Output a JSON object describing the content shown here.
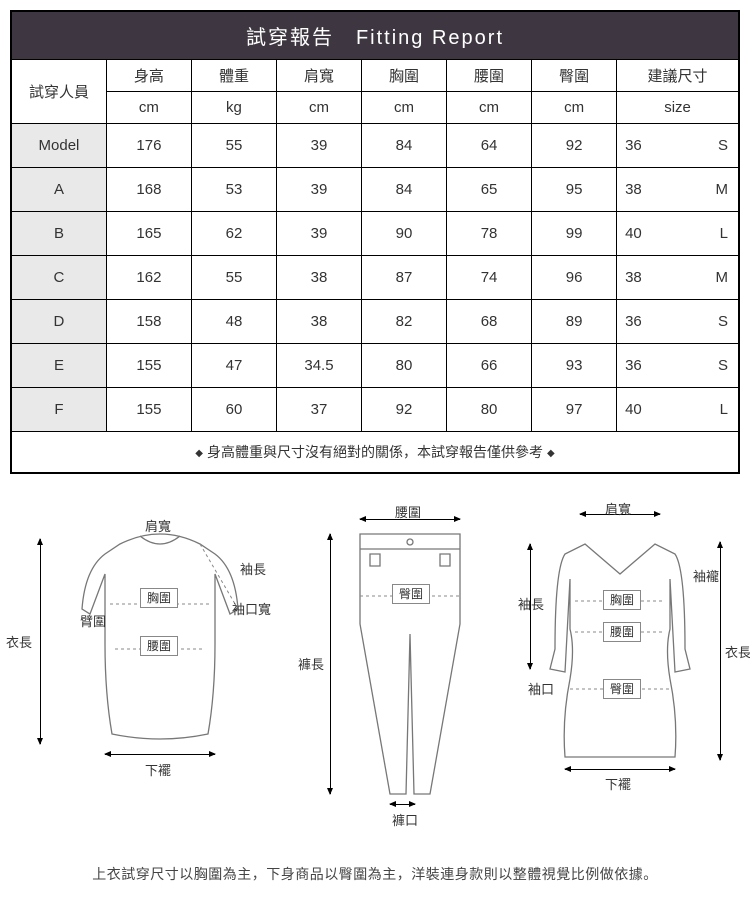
{
  "title": "試穿報告　Fitting Report",
  "columns": [
    {
      "top": "試穿人員",
      "sub": ""
    },
    {
      "top": "身高",
      "sub": "cm"
    },
    {
      "top": "體重",
      "sub": "kg"
    },
    {
      "top": "肩寬",
      "sub": "cm"
    },
    {
      "top": "胸圍",
      "sub": "cm"
    },
    {
      "top": "腰圍",
      "sub": "cm"
    },
    {
      "top": "臀圍",
      "sub": "cm"
    },
    {
      "top": "建議尺寸",
      "sub": "size"
    }
  ],
  "rows": [
    {
      "name": "Model",
      "h": "176",
      "w": "55",
      "sh": "39",
      "bu": "84",
      "wa": "64",
      "hi": "92",
      "szn": "36",
      "szl": "S"
    },
    {
      "name": "A",
      "h": "168",
      "w": "53",
      "sh": "39",
      "bu": "84",
      "wa": "65",
      "hi": "95",
      "szn": "38",
      "szl": "M"
    },
    {
      "name": "B",
      "h": "165",
      "w": "62",
      "sh": "39",
      "bu": "90",
      "wa": "78",
      "hi": "99",
      "szn": "40",
      "szl": "L"
    },
    {
      "name": "C",
      "h": "162",
      "w": "55",
      "sh": "38",
      "bu": "87",
      "wa": "74",
      "hi": "96",
      "szn": "38",
      "szl": "M"
    },
    {
      "name": "D",
      "h": "158",
      "w": "48",
      "sh": "38",
      "bu": "82",
      "wa": "68",
      "hi": "89",
      "szn": "36",
      "szl": "S"
    },
    {
      "name": "E",
      "h": "155",
      "w": "47",
      "sh": "34.5",
      "bu": "80",
      "wa": "66",
      "hi": "93",
      "szn": "36",
      "szl": "S"
    },
    {
      "name": "F",
      "h": "155",
      "w": "60",
      "sh": "37",
      "bu": "92",
      "wa": "80",
      "hi": "97",
      "szn": "40",
      "szl": "L"
    }
  ],
  "footnote": "身高體重與尺寸沒有絕對的關係，本試穿報告僅供參考",
  "diagram_labels": {
    "shirt": {
      "shoulder": "肩寬",
      "sleeve": "袖長",
      "cuff": "袖口寬",
      "bust": "胸圍",
      "arm": "臂圍",
      "waist": "腰圍",
      "length": "衣長",
      "hem": "下襬"
    },
    "pants": {
      "waist": "腰圍",
      "hip": "臀圍",
      "length": "褲長",
      "hem": "褲口"
    },
    "dress": {
      "shoulder": "肩寬",
      "sleeve": "袖長",
      "cuff": "袖口",
      "armhole": "袖襱",
      "bust": "胸圍",
      "waist": "腰圍",
      "hip": "臀圍",
      "length": "衣長",
      "hem": "下襬"
    }
  },
  "bottom_note": "上衣試穿尺寸以胸圍為主，下身商品以臀圍為主，洋裝連身款則以整體視覺比例做依據。",
  "colors": {
    "header_bg": "#3e3742",
    "first_col_bg": "#e9e9e9",
    "border": "#000000"
  }
}
